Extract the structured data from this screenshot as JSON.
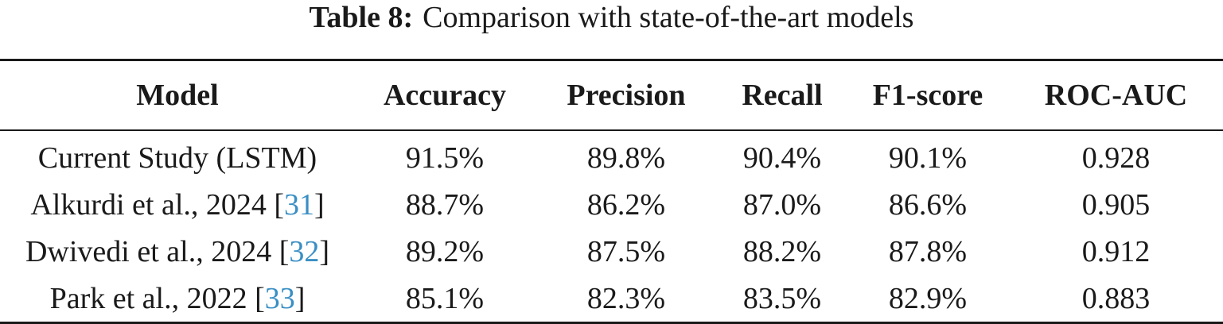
{
  "caption": {
    "label": "Table 8:",
    "text": "Comparison with state-of-the-art models"
  },
  "table": {
    "headers": [
      "Model",
      "Accuracy",
      "Precision",
      "Recall",
      "F1-score",
      "ROC-AUC"
    ],
    "rows": [
      {
        "model": "Current Study (LSTM)",
        "cite": "",
        "accuracy": "91.5%",
        "precision": "89.8%",
        "recall": "90.4%",
        "f1": "90.1%",
        "roc_auc": "0.928"
      },
      {
        "model": "Alkurdi et al., 2024",
        "cite": "31",
        "accuracy": "88.7%",
        "precision": "86.2%",
        "recall": "87.0%",
        "f1": "86.6%",
        "roc_auc": "0.905"
      },
      {
        "model": "Dwivedi et al., 2024",
        "cite": "32",
        "accuracy": "89.2%",
        "precision": "87.5%",
        "recall": "88.2%",
        "f1": "87.8%",
        "roc_auc": "0.912"
      },
      {
        "model": "Park et al., 2022",
        "cite": "33",
        "accuracy": "85.1%",
        "precision": "82.3%",
        "recall": "83.5%",
        "f1": "82.9%",
        "roc_auc": "0.883"
      }
    ]
  },
  "colors": {
    "text": "#1a1a1a",
    "citation": "#3a8fc4"
  }
}
